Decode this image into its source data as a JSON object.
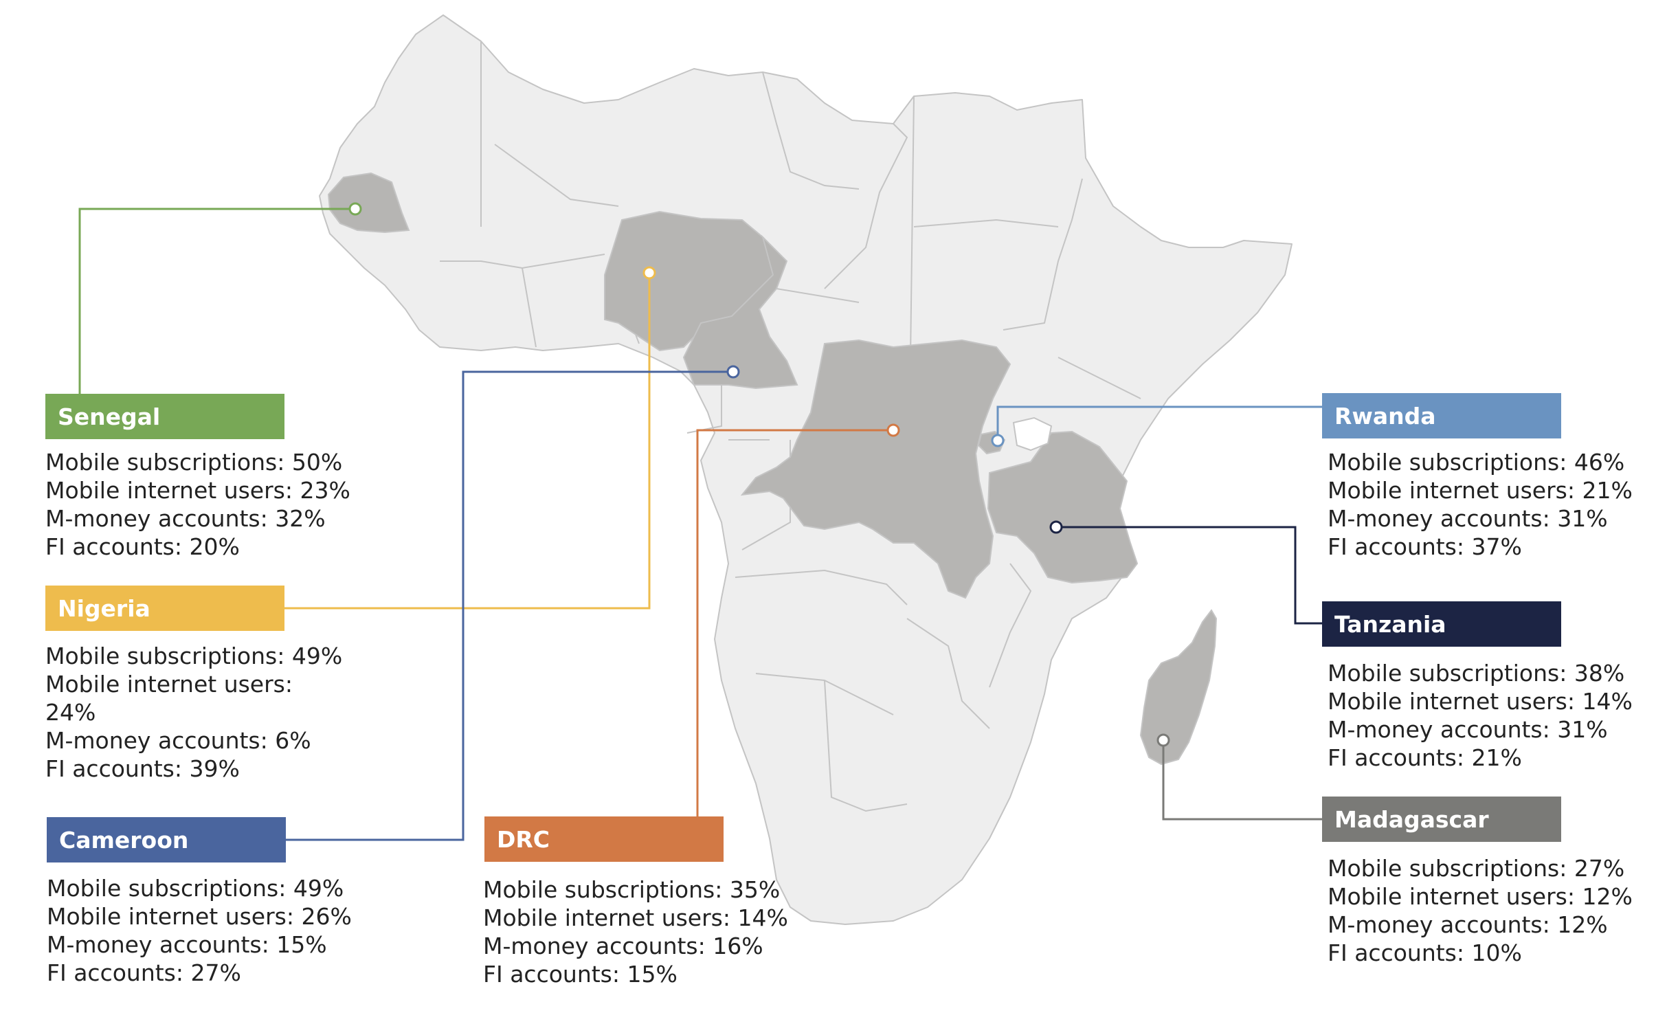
{
  "colors": {
    "land": "#eeeeee",
    "border": "#c4c4c4",
    "highlight": "#b6b5b3",
    "senegal": "#78a856",
    "nigeria": "#eebc4d",
    "cameroon": "#4a659e",
    "drc": "#d27945",
    "rwanda": "#6a93c1",
    "tanzania": "#1c2444",
    "madagascar": "#7a7a77"
  },
  "countries": {
    "senegal": {
      "name": "Senegal",
      "stats": [
        "Mobile subscriptions: 50%",
        "Mobile internet users: 23%",
        "M-money accounts: 32%",
        "FI accounts: 20%"
      ]
    },
    "nigeria": {
      "name": "Nigeria",
      "stats": [
        "Mobile subscriptions: 49%",
        "Mobile internet users:",
        "24%",
        "M-money accounts: 6%",
        "FI accounts: 39%"
      ]
    },
    "cameroon": {
      "name": "Cameroon",
      "stats": [
        "Mobile subscriptions: 49%",
        "Mobile internet users: 26%",
        "M-money accounts: 15%",
        "FI accounts: 27%"
      ]
    },
    "drc": {
      "name": "DRC",
      "stats": [
        "Mobile subscriptions: 35%",
        "Mobile internet users: 14%",
        "M-money accounts: 16%",
        "FI accounts: 15%"
      ]
    },
    "rwanda": {
      "name": "Rwanda",
      "stats": [
        "Mobile subscriptions: 46%",
        "Mobile internet users: 21%",
        "M-money accounts: 31%",
        "FI accounts: 37%"
      ]
    },
    "tanzania": {
      "name": "Tanzania",
      "stats": [
        "Mobile subscriptions: 38%",
        "Mobile internet users: 14%",
        "M-money accounts: 31%",
        "FI accounts: 21%"
      ]
    },
    "madagascar": {
      "name": "Madagascar",
      "stats": [
        "Mobile subscriptions: 27%",
        "Mobile internet users: 12%",
        "M-money accounts: 12%",
        "FI accounts: 10%"
      ]
    }
  }
}
